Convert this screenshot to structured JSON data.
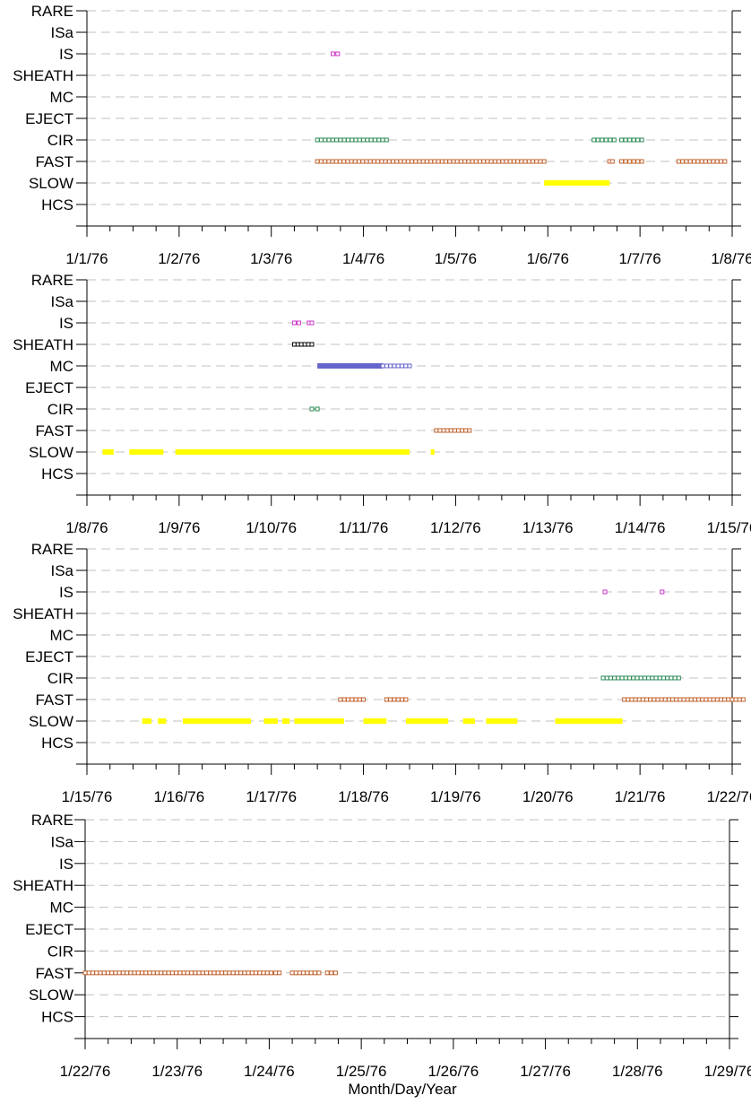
{
  "chart_data": {
    "type": "scatter",
    "xlabel": "Month/Day/Year",
    "categories": [
      "RARE",
      "ISa",
      "IS",
      "SHEATH",
      "MC",
      "EJECT",
      "CIR",
      "FAST",
      "SLOW",
      "HCS"
    ],
    "colors": {
      "IS": "#cc33cc",
      "SHEATH": "#000000",
      "MC": "#6666cc",
      "CIR": "#2e8b57",
      "FAST": "#c0622d",
      "SLOW": "#ffff00",
      "grid": "#c0c0c0"
    },
    "panels": [
      {
        "xlim": [
          "1/1/76",
          "1/8/76"
        ],
        "tick_labels": [
          "1/1/76",
          "1/2/76",
          "1/3/76",
          "1/4/76",
          "1/5/76",
          "1/6/76",
          "1/7/76",
          "1/8/76"
        ],
        "series": [
          {
            "category": "IS",
            "style": "markers",
            "start": 2.67,
            "end": 2.72
          },
          {
            "category": "CIR",
            "style": "markers",
            "start": 2.5,
            "end": 3.25
          },
          {
            "category": "CIR",
            "style": "markers",
            "start": 5.5,
            "end": 5.72
          },
          {
            "category": "CIR",
            "style": "markers",
            "start": 5.8,
            "end": 6.02
          },
          {
            "category": "FAST",
            "style": "markers",
            "start": 2.5,
            "end": 4.96
          },
          {
            "category": "FAST",
            "style": "markers",
            "start": 5.67,
            "end": 5.7
          },
          {
            "category": "FAST",
            "style": "markers",
            "start": 5.8,
            "end": 6.02
          },
          {
            "category": "FAST",
            "style": "markers",
            "start": 6.42,
            "end": 6.92
          },
          {
            "category": "SLOW",
            "style": "bar",
            "start": 4.96,
            "end": 5.67
          }
        ]
      },
      {
        "xlim": [
          "1/8/76",
          "1/15/76"
        ],
        "tick_labels": [
          "1/8/76",
          "1/9/76",
          "1/10/76",
          "1/11/76",
          "1/12/76",
          "1/13/76",
          "1/14/76",
          "1/15/76"
        ],
        "series": [
          {
            "category": "IS",
            "style": "markers",
            "start": 2.25,
            "end": 2.3
          },
          {
            "category": "IS",
            "style": "markers",
            "start": 2.41,
            "end": 2.44
          },
          {
            "category": "SHEATH",
            "style": "markers",
            "start": 2.25,
            "end": 2.44
          },
          {
            "category": "MC",
            "style": "bar",
            "start": 2.5,
            "end": 3.21
          },
          {
            "category": "MC",
            "style": "markers",
            "start": 3.21,
            "end": 3.5
          },
          {
            "category": "CIR",
            "style": "markers",
            "start": 2.44,
            "end": 2.5
          },
          {
            "category": "FAST",
            "style": "markers",
            "start": 3.79,
            "end": 4.15
          },
          {
            "category": "SLOW",
            "style": "bar",
            "start": 0.17,
            "end": 0.29
          },
          {
            "category": "SLOW",
            "style": "bar",
            "start": 0.46,
            "end": 0.83
          },
          {
            "category": "SLOW",
            "style": "bar",
            "start": 0.96,
            "end": 3.5
          },
          {
            "category": "SLOW",
            "style": "bar",
            "start": 3.73,
            "end": 3.77
          }
        ]
      },
      {
        "xlim": [
          "1/15/76",
          "1/22/76"
        ],
        "tick_labels": [
          "1/15/76",
          "1/16/76",
          "1/17/76",
          "1/18/76",
          "1/19/76",
          "1/20/76",
          "1/21/76",
          "1/22/76"
        ],
        "series": [
          {
            "category": "IS",
            "style": "markers",
            "start": 5.62,
            "end": 5.64
          },
          {
            "category": "IS",
            "style": "markers",
            "start": 6.24,
            "end": 6.26
          },
          {
            "category": "CIR",
            "style": "markers",
            "start": 5.6,
            "end": 6.42
          },
          {
            "category": "FAST",
            "style": "markers",
            "start": 2.75,
            "end": 3.0
          },
          {
            "category": "FAST",
            "style": "markers",
            "start": 3.25,
            "end": 3.46
          },
          {
            "category": "FAST",
            "style": "markers",
            "start": 5.83,
            "end": 7.12
          },
          {
            "category": "SLOW",
            "style": "bar",
            "start": 0.6,
            "end": 0.7
          },
          {
            "category": "SLOW",
            "style": "bar",
            "start": 0.77,
            "end": 0.86
          },
          {
            "category": "SLOW",
            "style": "bar",
            "start": 1.04,
            "end": 1.78
          },
          {
            "category": "SLOW",
            "style": "bar",
            "start": 1.92,
            "end": 2.07
          },
          {
            "category": "SLOW",
            "style": "bar",
            "start": 2.12,
            "end": 2.2
          },
          {
            "category": "SLOW",
            "style": "bar",
            "start": 2.25,
            "end": 2.79
          },
          {
            "category": "SLOW",
            "style": "bar",
            "start": 3.0,
            "end": 3.25
          },
          {
            "category": "SLOW",
            "style": "bar",
            "start": 3.46,
            "end": 3.92
          },
          {
            "category": "SLOW",
            "style": "bar",
            "start": 4.08,
            "end": 4.21
          },
          {
            "category": "SLOW",
            "style": "bar",
            "start": 4.33,
            "end": 4.67
          },
          {
            "category": "SLOW",
            "style": "bar",
            "start": 5.08,
            "end": 5.81
          }
        ]
      },
      {
        "xlim": [
          "1/22/76",
          "1/29/76"
        ],
        "tick_labels": [
          "1/22/76",
          "1/23/76",
          "1/24/76",
          "1/25/76",
          "1/26/76",
          "1/27/76",
          "1/28/76",
          "1/29/76"
        ],
        "series": [
          {
            "category": "FAST",
            "style": "markers",
            "start": 0.0,
            "end": 2.02
          },
          {
            "category": "FAST",
            "style": "markers",
            "start": 2.07,
            "end": 2.11
          },
          {
            "category": "FAST",
            "style": "markers",
            "start": 2.25,
            "end": 2.33
          },
          {
            "category": "FAST",
            "style": "markers",
            "start": 2.37,
            "end": 2.54
          },
          {
            "category": "FAST",
            "style": "markers",
            "start": 2.63,
            "end": 2.72
          }
        ]
      }
    ]
  }
}
